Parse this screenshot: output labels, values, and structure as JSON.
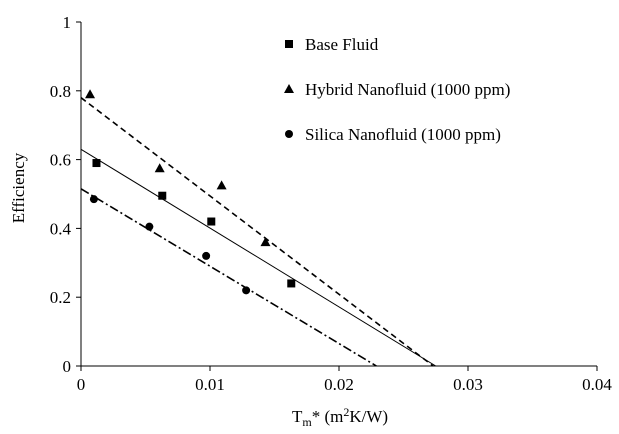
{
  "chart_data": {
    "type": "scatter",
    "title": "",
    "xlabel": {
      "main": "T",
      "sub": "m",
      "rest1": "* (m",
      "sup": "2",
      "rest2": "K/W)"
    },
    "ylabel": "Efficiency",
    "xlim": [
      0,
      0.04
    ],
    "ylim": [
      0,
      1
    ],
    "x_ticks": [
      0,
      0.01,
      0.02,
      0.03,
      0.04
    ],
    "x_tick_labels": [
      "0",
      "0.01",
      "0.02",
      "0.03",
      "0.04"
    ],
    "y_ticks": [
      0,
      0.2,
      0.4,
      0.6,
      0.8,
      1
    ],
    "y_tick_labels": [
      "0",
      "0.2",
      "0.4",
      "0.6",
      "0.8",
      "1"
    ],
    "grid": false,
    "legend_position": "top-right",
    "series": [
      {
        "name": "Base Fluid",
        "marker": "square",
        "line_style": "solid",
        "points": [
          [
            0.0012,
            0.59
          ],
          [
            0.0063,
            0.495
          ],
          [
            0.0101,
            0.42
          ],
          [
            0.0163,
            0.24
          ]
        ],
        "fit": [
          [
            0,
            0.63
          ],
          [
            0.0275,
            0
          ]
        ]
      },
      {
        "name": "Hybrid Nanofluid (1000 ppm)",
        "marker": "triangle",
        "line_style": "dashed",
        "points": [
          [
            0.0007,
            0.79
          ],
          [
            0.0061,
            0.575
          ],
          [
            0.0109,
            0.525
          ],
          [
            0.0143,
            0.36
          ]
        ],
        "fit": [
          [
            0,
            0.78
          ],
          [
            0.0273,
            0
          ]
        ]
      },
      {
        "name": "Silica Nanofluid (1000 ppm)",
        "marker": "circle",
        "line_style": "dashdot",
        "points": [
          [
            0.001,
            0.485
          ],
          [
            0.0053,
            0.405
          ],
          [
            0.0097,
            0.32
          ],
          [
            0.0128,
            0.22
          ]
        ],
        "fit": [
          [
            0,
            0.515
          ],
          [
            0.0229,
            0
          ]
        ]
      }
    ]
  }
}
